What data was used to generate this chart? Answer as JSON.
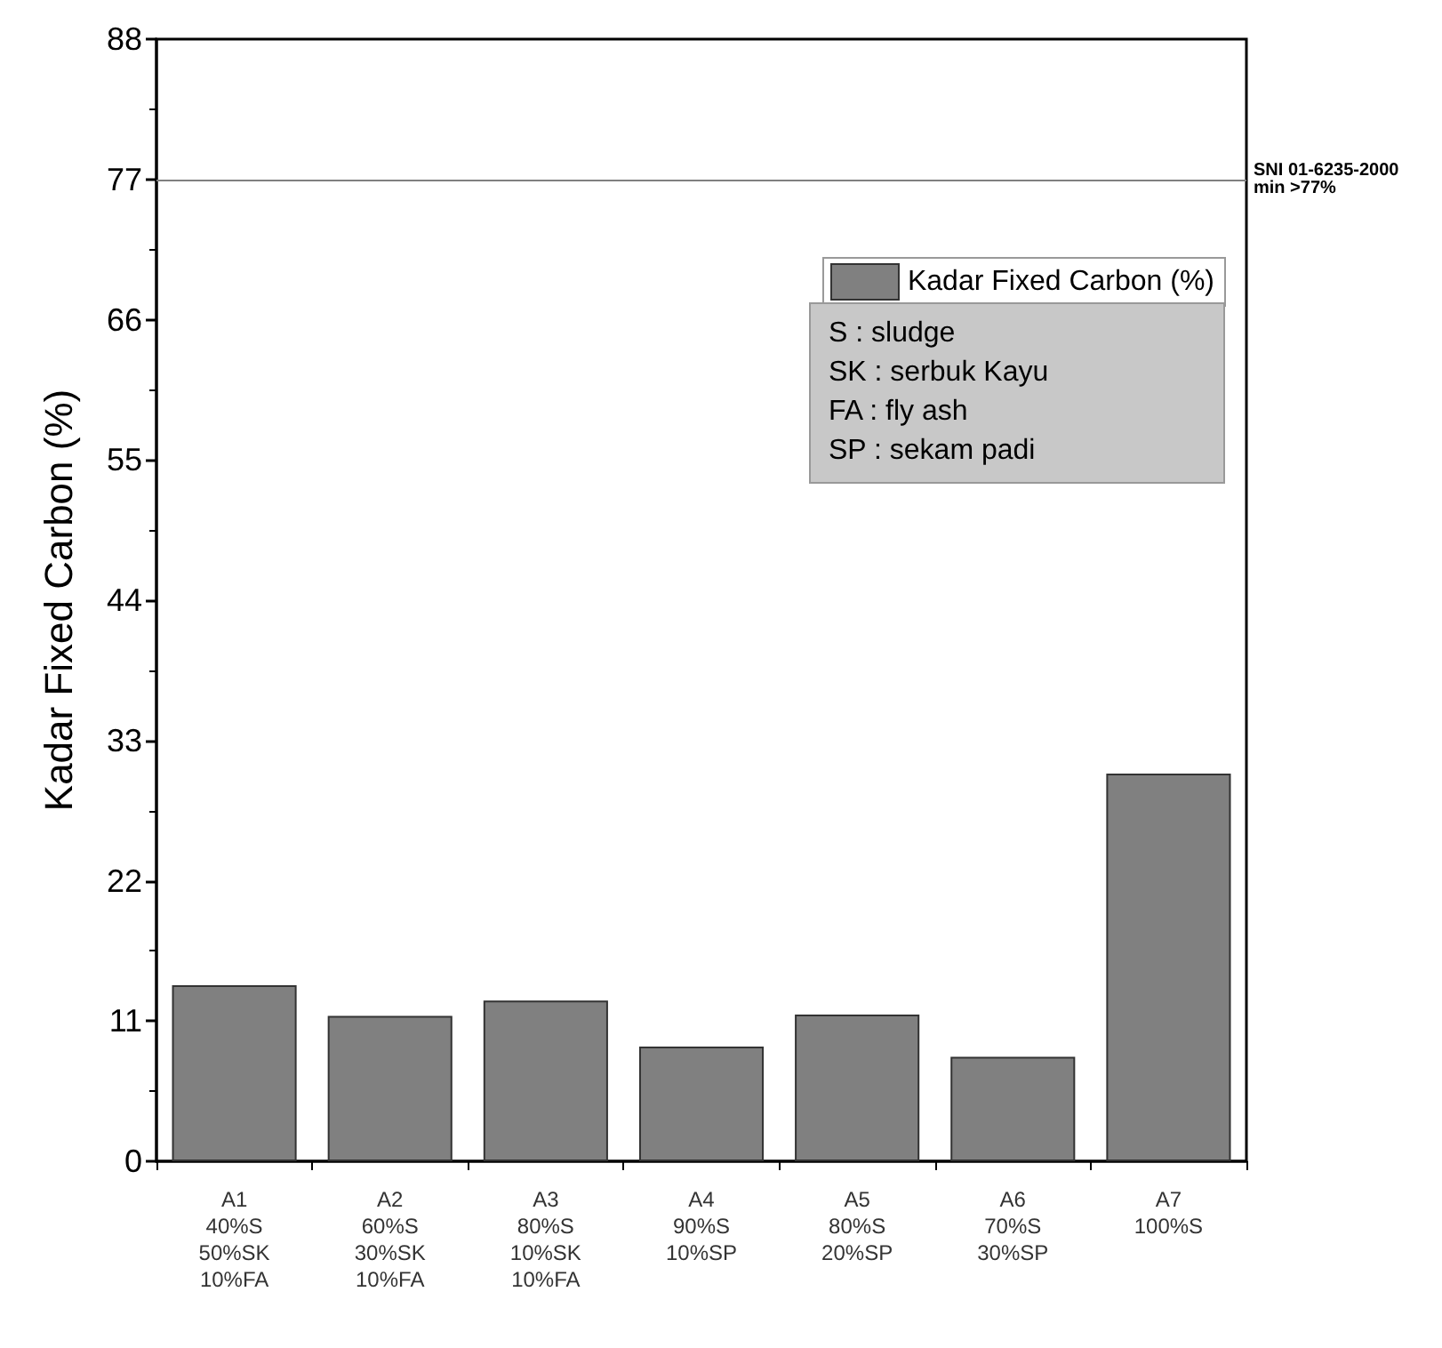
{
  "chart_data": {
    "type": "bar",
    "ylabel": "Kadar Fixed Carbon (%)",
    "categories": [
      "A1\n40%S\n50%SK\n10%FA",
      "A2\n60%S\n30%SK\n10%FA",
      "A3\n80%S\n10%SK\n10%FA",
      "A4\n90%S\n10%SP",
      "A5\n80%S\n20%SP",
      "A6\n70%S\n30%SP",
      "A7\n100%S"
    ],
    "series": [
      {
        "name": "Kadar Fixed Carbon (%)",
        "color": "#808080",
        "values": [
          13.8,
          11.4,
          12.6,
          9.0,
          11.5,
          8.2,
          30.4
        ]
      }
    ],
    "ylim": [
      0,
      88
    ],
    "yticks": [
      0,
      11,
      22,
      33,
      44,
      55,
      66,
      77,
      88
    ],
    "ref_lines": [
      {
        "axis": "y",
        "value": 77,
        "label": "SNI 01-6235-2000\nmin >77%",
        "color": "#808080",
        "line_style": "solid"
      }
    ],
    "annotations": [
      "S : sludge",
      "SK : serbuk Kayu",
      "FA : fly ash",
      "SP : sekam padi"
    ],
    "legend": "top right",
    "grid": false
  }
}
